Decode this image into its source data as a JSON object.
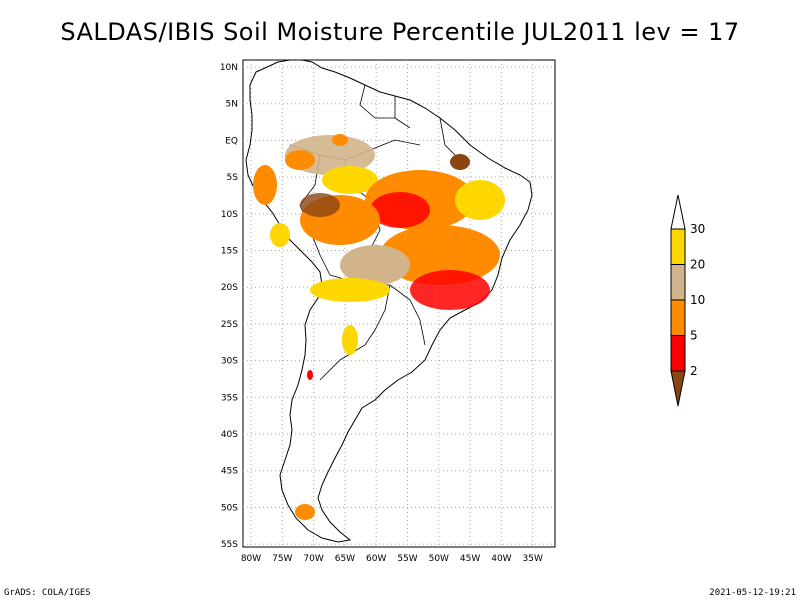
{
  "title": "SALDAS/IBIS Soil Moisture Percentile JUL2011 lev = 17",
  "lat_labels": [
    "10N",
    "5N",
    "EQ",
    "5S",
    "10S",
    "15S",
    "20S",
    "25S",
    "30S",
    "35S",
    "40S",
    "45S",
    "50S",
    "55S"
  ],
  "lon_labels": [
    "80W",
    "75W",
    "70W",
    "65W",
    "60W",
    "55W",
    "50W",
    "45W",
    "40W",
    "35W"
  ],
  "colorbar": {
    "labels": [
      "30",
      "20",
      "10",
      "5",
      "2"
    ],
    "colors": [
      "#ffffff",
      "#ffd700",
      "#d2b48c",
      "#ff8c00",
      "#ff0000",
      "#8b4513"
    ]
  },
  "footer_left": "GrADS: COLA/IGES",
  "footer_right": "2021-05-12-19:21"
}
